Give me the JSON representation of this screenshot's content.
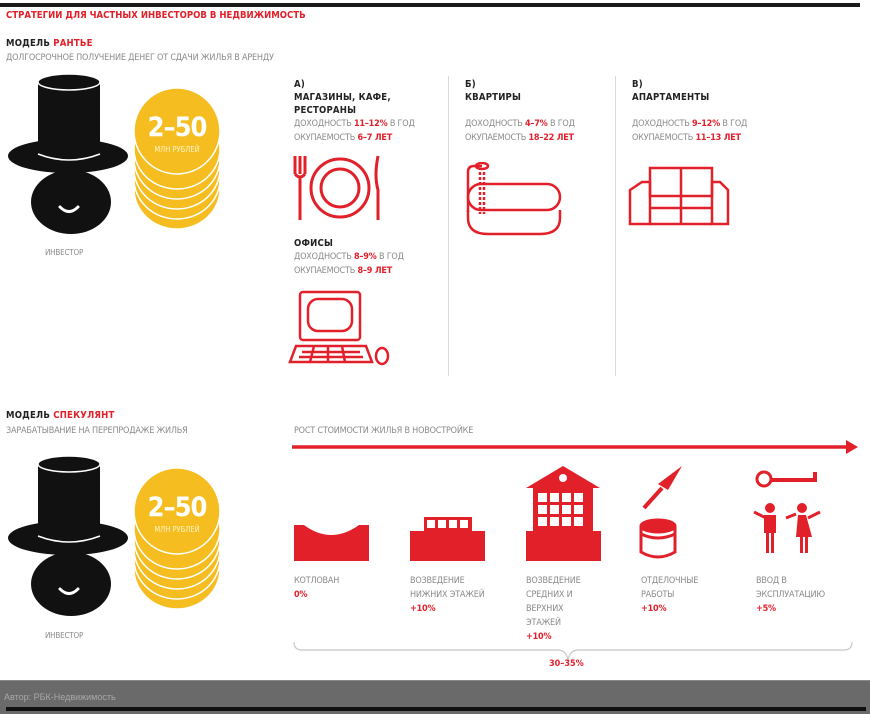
{
  "title": "СТРАТЕГИИ ДЛЯ ЧАСТНЫХ ИНВЕСТОРОВ В НЕДВИЖИМОСТЬ",
  "colors": {
    "accent": "#e2202a",
    "coin": "#f5bd1f",
    "hat": "#111111",
    "footer": "#6a6a6a"
  },
  "rentier": {
    "model_label": "МОДЕЛЬ",
    "model_name": "РАНТЬЕ",
    "description": "ДОЛГОСРОЧНОЕ ПОЛУЧЕНИЕ ДЕНЕГ ОТ СДАЧИ ЖИЛЬЯ В АРЕНДУ",
    "investor_label": "ИНВЕСТОР",
    "amount": "2–50",
    "amount_unit": "МЛН РУБЛЕЙ",
    "yield_label": "ДОХОДНОСТЬ",
    "yield_suffix": "В ГОД",
    "payback_label": "ОКУПАЕМОСТЬ",
    "options": [
      {
        "letter": "А)",
        "name": "МАГАЗИНЫ, КАФЕ, РЕСТОРАНЫ",
        "yield": "11–12%",
        "payback": "6–7 ЛЕТ",
        "icon": "cutlery-plate-icon"
      },
      {
        "letter": "",
        "name": "ОФИСЫ",
        "yield": "8–9%",
        "payback": "8–9 ЛЕТ",
        "icon": "computer-icon"
      },
      {
        "letter": "Б)",
        "name": "КВАРТИРЫ",
        "yield": "4–7%",
        "payback": "18–22 ЛЕТ",
        "icon": "bathtub-icon"
      },
      {
        "letter": "В)",
        "name": "АПАРТАМЕНТЫ",
        "yield": "9–12%",
        "payback": "11–13 ЛЕТ",
        "icon": "sofa-icon"
      }
    ]
  },
  "speculator": {
    "model_label": "МОДЕЛЬ",
    "model_name": "СПЕКУЛЯНТ",
    "description": "ЗАРАБАТЫВАНИЕ НА ПЕРЕПРОДАЖЕ ЖИЛЬЯ",
    "investor_label": "ИНВЕСТОР",
    "amount": "2–50",
    "amount_unit": "МЛН РУБЛЕЙ",
    "growth_label": "РОСТ СТОИМОСТИ ЖИЛЬЯ В НОВОСТРОЙКЕ",
    "stages": [
      {
        "name": "КОТЛОВАН",
        "value": "0%",
        "icon": "pit-icon"
      },
      {
        "name": "ВОЗВЕДЕНИЕ НИЖНИХ ЭТАЖЕЙ",
        "value": "+10%",
        "icon": "low-building-icon"
      },
      {
        "name": "ВОЗВЕДЕНИЕ СРЕДНИХ И ВЕРХНИХ ЭТАЖЕЙ",
        "value": "+10%",
        "icon": "tall-building-icon"
      },
      {
        "name": "ОТДЕЛОЧНЫЕ РАБОТЫ",
        "value": "+10%",
        "icon": "trowel-bucket-icon"
      },
      {
        "name": "ВВОД В ЭКСПЛУАТАЦИЮ",
        "value": "+5%",
        "icon": "key-family-icon"
      }
    ],
    "total": "30–35%"
  },
  "footer": {
    "author": "Автор:  РБК-Недвижимость"
  }
}
